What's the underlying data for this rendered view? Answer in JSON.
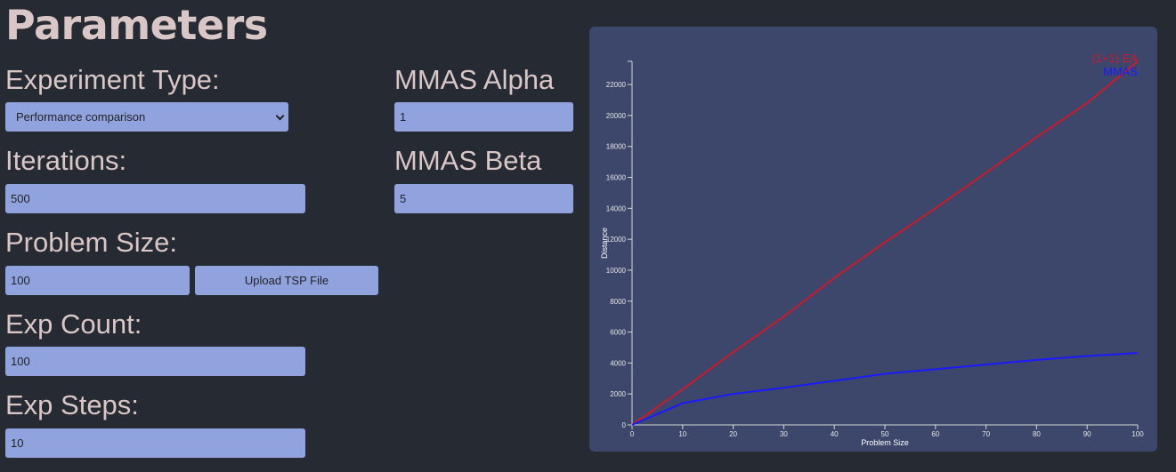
{
  "page": {
    "title": "Parameters"
  },
  "form": {
    "experiment_type": {
      "label": "Experiment Type:",
      "selected": "Performance comparison"
    },
    "iterations": {
      "label": "Iterations:",
      "value": "500"
    },
    "problem_size": {
      "label": "Problem Size:",
      "value": "100",
      "upload_label": "Upload TSP File"
    },
    "exp_count": {
      "label": "Exp Count:",
      "value": "100"
    },
    "exp_steps": {
      "label": "Exp Steps:",
      "value": "10"
    },
    "mmas_alpha": {
      "label": "MMAS Alpha",
      "value": "1"
    },
    "mmas_beta": {
      "label": "MMAS Beta",
      "value": "5"
    }
  },
  "colors": {
    "accent": "#91a3df",
    "background": "#262a33",
    "panel": "#3d476b"
  },
  "chart_data": {
    "type": "line",
    "xlabel": "Problem Size",
    "ylabel": "Distance",
    "xlim": [
      0,
      100
    ],
    "ylim": [
      0,
      23500
    ],
    "xticks": [
      0,
      10,
      20,
      30,
      40,
      50,
      60,
      70,
      80,
      90,
      100
    ],
    "yticks": [
      0,
      2000,
      4000,
      6000,
      8000,
      10000,
      12000,
      14000,
      16000,
      18000,
      20000,
      22000
    ],
    "legend_position": "top-right",
    "series": [
      {
        "name": "(1+1) EA",
        "color": "#cc1a2c",
        "x": [
          0,
          10,
          20,
          30,
          40,
          50,
          60,
          70,
          80,
          90,
          100
        ],
        "values": [
          0,
          2300,
          4700,
          7000,
          9500,
          11800,
          14000,
          16300,
          18600,
          20800,
          23500
        ]
      },
      {
        "name": "MMAS",
        "color": "#1a1aff",
        "x": [
          0,
          10,
          20,
          30,
          40,
          50,
          60,
          70,
          80,
          90,
          100
        ],
        "values": [
          0,
          1400,
          2000,
          2400,
          2850,
          3300,
          3600,
          3900,
          4200,
          4450,
          4650
        ]
      }
    ]
  }
}
